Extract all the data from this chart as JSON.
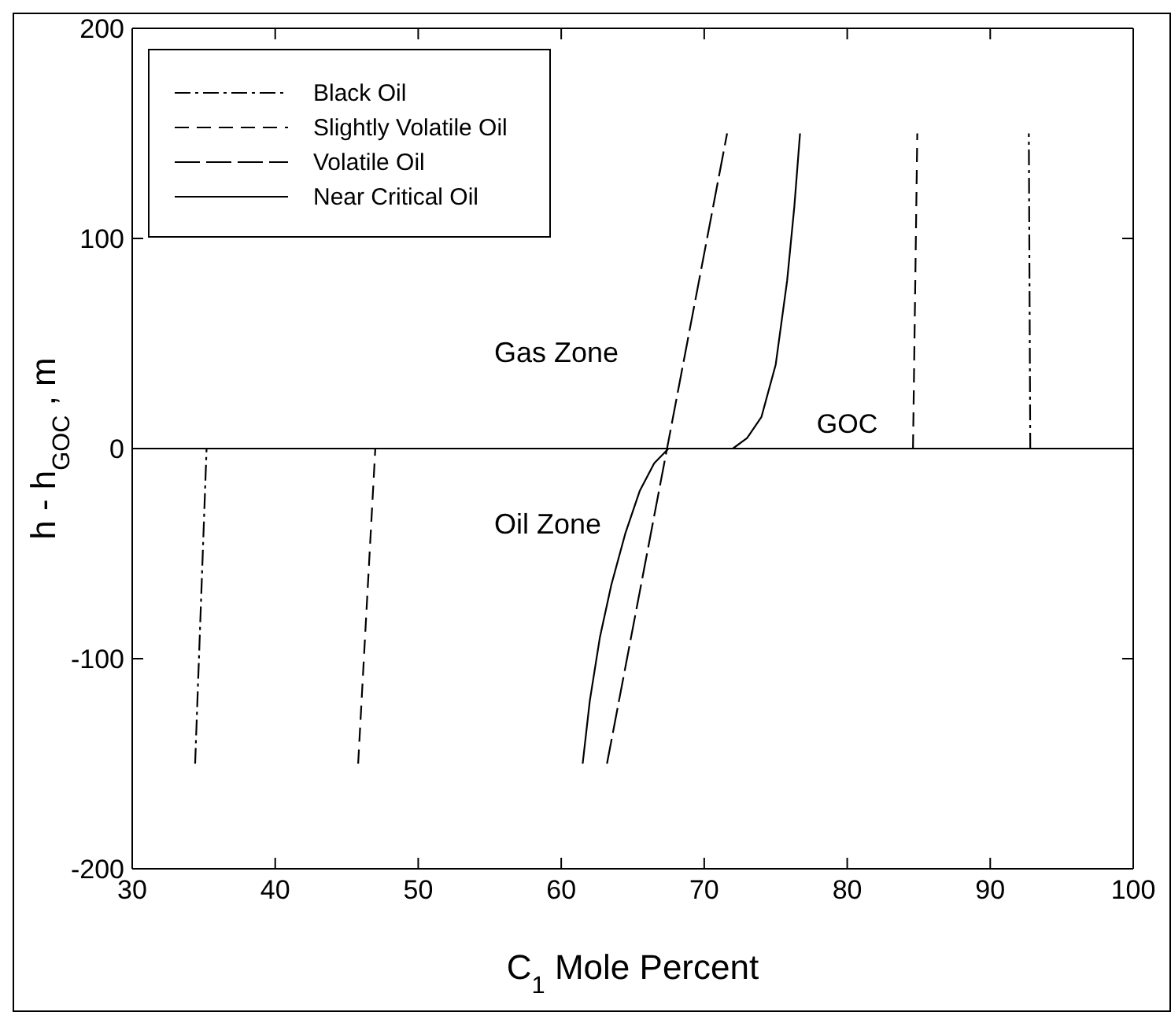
{
  "chart_data": {
    "type": "line",
    "xlabel": "C$_{1}$ Mole Percent",
    "ylabel": "h - h$_{GOC}$ , m",
    "xlim": [
      30,
      100
    ],
    "xticks": [
      30,
      40,
      50,
      60,
      70,
      80,
      90,
      100
    ],
    "ylim": [
      -200,
      200
    ],
    "yticks": [
      -200,
      -100,
      0,
      100,
      200
    ],
    "grid": false,
    "legend": "top left",
    "marker": "none",
    "series": [
      {
        "name": "Black Oil",
        "color": "#000000",
        "line_style": "dashdot",
        "x": [
          34.4,
          35.2,
          null,
          92.8,
          92.7
        ],
        "values": [
          -150,
          0,
          null,
          0,
          150
        ]
      },
      {
        "name": "Slightly Volatile Oil",
        "color": "#000000",
        "line_style": "dashed",
        "x": [
          45.8,
          47.0,
          null,
          84.6,
          84.9
        ],
        "values": [
          -150,
          0,
          null,
          0,
          150
        ]
      },
      {
        "name": "Volatile Oil",
        "color": "#000000",
        "line_style": "longdash",
        "x": [
          63.2,
          67.4,
          71.6
        ],
        "values": [
          -150,
          0,
          150
        ]
      },
      {
        "name": "Near Critical Oil",
        "color": "#000000",
        "line_style": "solid",
        "x": [
          61.5,
          62,
          62.7,
          63.5,
          64.5,
          65.5,
          66.5,
          67.5,
          null,
          72,
          73,
          74,
          75,
          75.8,
          76.3,
          76.7
        ],
        "values": [
          -150,
          -120,
          -90,
          -65,
          -40,
          -20,
          -7,
          0,
          null,
          0,
          5,
          15,
          40,
          80,
          115,
          150
        ]
      }
    ],
    "ref_lines": [
      {
        "axis": "y",
        "value": 0,
        "color": "#000000",
        "line_style": "solid"
      }
    ],
    "annotations": [
      "Gas Zone",
      "Oil Zone",
      {
        "text": "GOC",
        "x": 80,
        "y": 0
      }
    ]
  }
}
